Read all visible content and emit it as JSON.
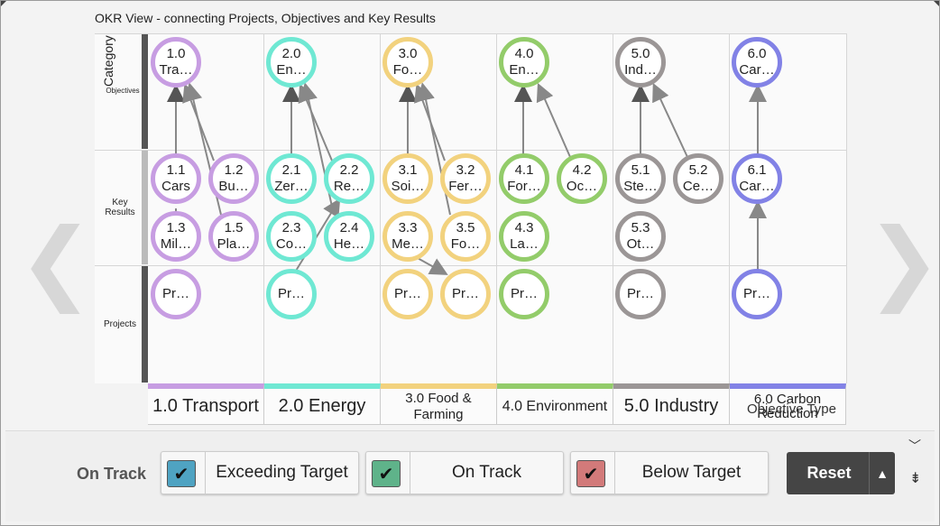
{
  "title": "OKR View - connecting Projects, Objectives and Key Results",
  "row_labels": {
    "category": "Category",
    "objectives": "Objectives",
    "key_results": "Key\nResults",
    "projects": "Projects"
  },
  "columns": [
    {
      "label": "1.0 Transport",
      "color": "#c79de2",
      "big": true
    },
    {
      "label": "2.0 Energy",
      "color": "#6fe8d3",
      "big": true
    },
    {
      "label": "3.0 Food &\nFarming",
      "color": "#f2d27e",
      "big": false
    },
    {
      "label": "4.0 Environment",
      "color": "#93cc6a",
      "big": false
    },
    {
      "label": "5.0 Industry",
      "color": "#9b9696",
      "big": true
    },
    {
      "label": "6.0 Carbon\nReduction",
      "color": "#8282e6",
      "big": false
    }
  ],
  "objective_type_label": "Objective Type",
  "nodes": {
    "o1": "1.0\nTra…",
    "o2": "2.0\nEn…",
    "o3": "3.0\nFo…",
    "o4": "4.0\nEn…",
    "o5": "5.0\nInd…",
    "o6": "6.0\nCar…",
    "k11": "1.1\nCars",
    "k12": "1.2\nBu…",
    "k13": "1.3\nMil…",
    "k15": "1.5\nPla…",
    "k21": "2.1\nZer…",
    "k22": "2.2\nRe…",
    "k23": "2.3\nCo…",
    "k24": "2.4\nHe…",
    "k31": "3.1\nSoi…",
    "k32": "3.2\nFer…",
    "k33": "3.3\nMe…",
    "k35": "3.5\nFo…",
    "k41": "4.1\nFor…",
    "k42": "4.2\nOc…",
    "k43": "4.3\nLa…",
    "k51": "5.1\nSte…",
    "k52": "5.2\nCe…",
    "k53": "5.3\nOt…",
    "k61": "6.1\nCar…",
    "p1": "Pr…",
    "p2": "Pr…",
    "p3a": "Pr…",
    "p3b": "Pr…",
    "p4": "Pr…",
    "p5": "Pr…",
    "p6": "Pr…"
  },
  "filters": {
    "status_label": "On Track",
    "buttons": [
      {
        "label": "Exceeding Target",
        "color": "#4fa3c2"
      },
      {
        "label": "On Track",
        "color": "#5fb38a"
      },
      {
        "label": "Below Target",
        "color": "#d27a7a"
      }
    ],
    "check_icon": "✔"
  },
  "reset": {
    "label": "Reset",
    "dropdown": "▲"
  },
  "nav": {
    "prev": "❮",
    "next": "❯"
  },
  "chevron_down": "﹀",
  "collapse_icon": "⇟"
}
